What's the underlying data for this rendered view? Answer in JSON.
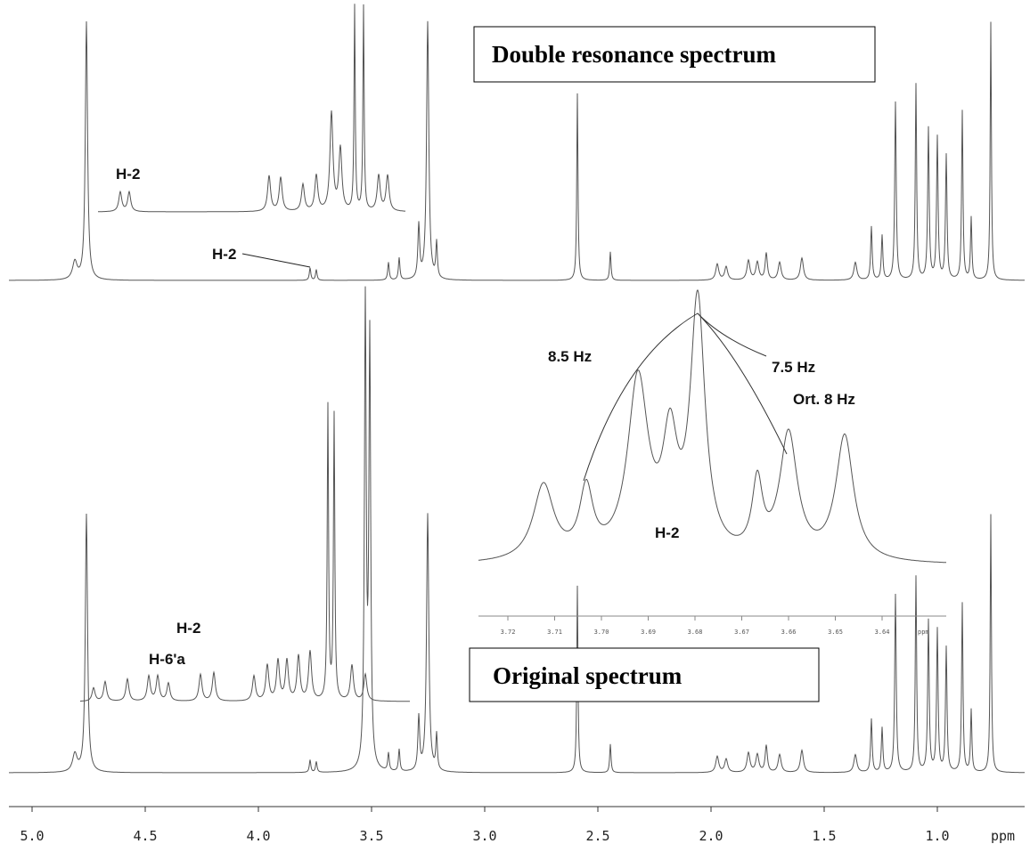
{
  "labels": {
    "double_resonance": "Double resonance spectrum",
    "original": "Original spectrum",
    "h2_top_inset": "H-2",
    "h2_top": "H-2",
    "coupling_left": "8.5 Hz",
    "coupling_right": "7.5 Hz",
    "ortho": "Ort. 8 Hz",
    "h2_inset": "H-2",
    "h2_bottom": "H-2",
    "h6a": "H-6'a"
  },
  "axis": {
    "ticks": [
      "5.0",
      "4.5",
      "4.0",
      "3.5",
      "3.0",
      "2.5",
      "2.0",
      "1.5",
      "1.0"
    ],
    "unit": "ppm"
  },
  "inset_axis": {
    "ticks": [
      "3.72",
      "3.71",
      "3.70",
      "3.69",
      "3.68",
      "3.67",
      "3.66",
      "3.65",
      "3.64"
    ],
    "unit": "ppm"
  }
}
